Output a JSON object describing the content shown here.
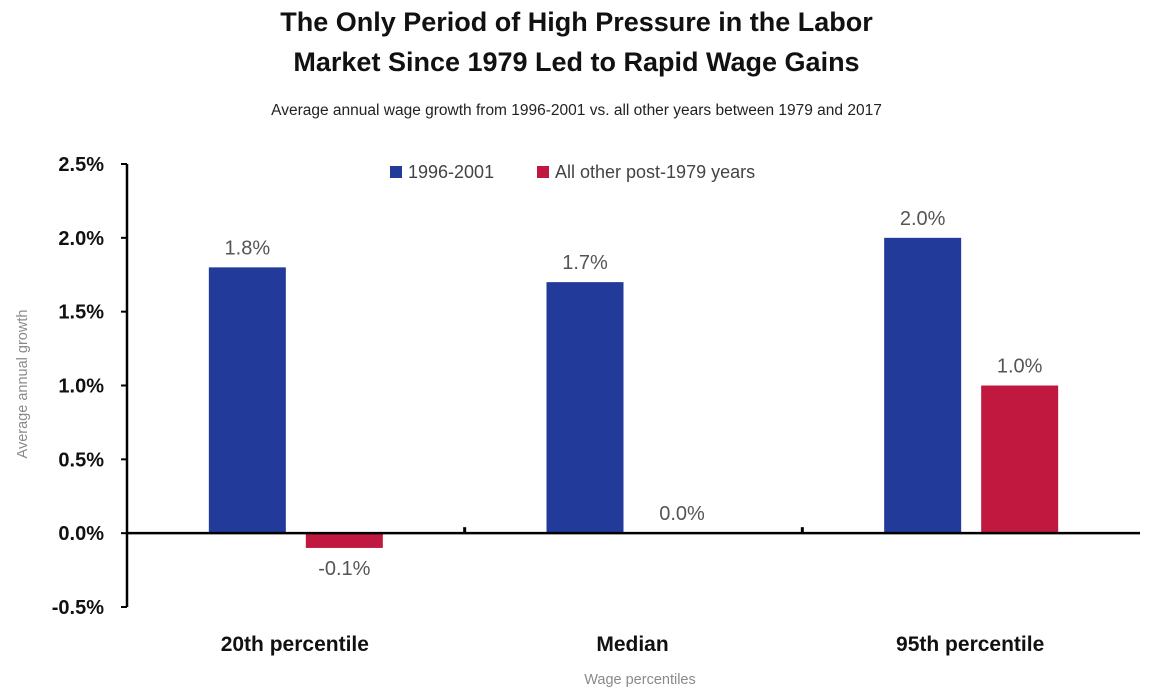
{
  "chart_data": {
    "type": "bar",
    "title_line1": "The Only Period of High Pressure in the Labor",
    "title_line2": "Market Since 1979 Led to Rapid Wage Gains",
    "subtitle": "Average  annual wage growth from 1996-2001 vs. all other years between  1979 and 2017",
    "xlabel": "Wage percentiles",
    "ylabel": "Average annual growth",
    "categories": [
      "20th percentile",
      "Median",
      "95th percentile"
    ],
    "series": [
      {
        "name": "1996-2001",
        "color": "#223a9a",
        "values": [
          1.8,
          1.7,
          2.0
        ],
        "labels": [
          "1.8%",
          "1.7%",
          "2.0%"
        ]
      },
      {
        "name": "All other post-1979 years",
        "color": "#c0183e",
        "values": [
          -0.1,
          0.0,
          1.0
        ],
        "labels": [
          "-0.1%",
          "0.0%",
          "1.0%"
        ]
      }
    ],
    "ylim": [
      -0.5,
      2.5
    ],
    "yticks": [
      -0.5,
      0.0,
      0.5,
      1.0,
      1.5,
      2.0,
      2.5
    ],
    "ytick_labels": [
      "-0.5%",
      "0.0%",
      "0.5%",
      "1.0%",
      "1.5%",
      "2.0%",
      "2.5%"
    ],
    "legend_position": "top-center",
    "grid": false
  }
}
